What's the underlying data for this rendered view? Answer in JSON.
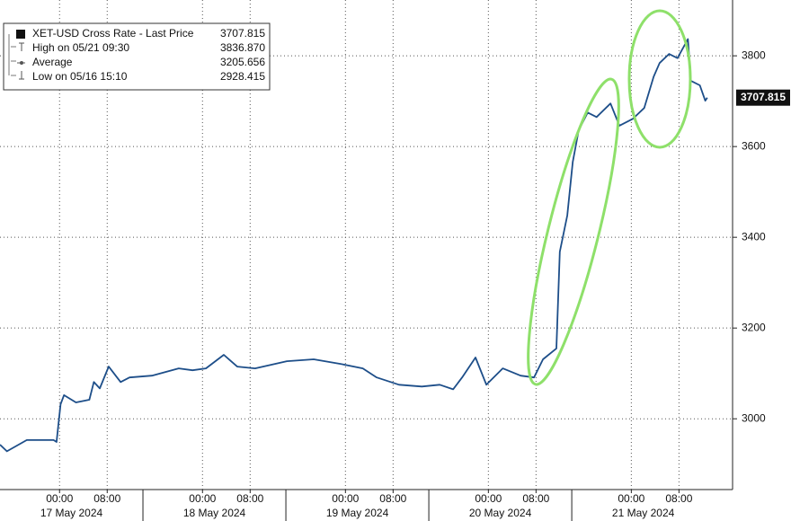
{
  "chart_data": {
    "type": "line",
    "series": [
      {
        "name": "XET-USD Cross Rate - Last Price",
        "color": "#1d4e89",
        "x": [
          "2024-05-16T14:00",
          "2024-05-16T15:10",
          "2024-05-16T18:30",
          "2024-05-16T23:00",
          "2024-05-16T23:30",
          "2024-05-17T00:10",
          "2024-05-17T00:45",
          "2024-05-17T02:45",
          "2024-05-17T05:00",
          "2024-05-17T05:45",
          "2024-05-17T06:45",
          "2024-05-17T08:15",
          "2024-05-17T10:15",
          "2024-05-17T11:45",
          "2024-05-17T15:30",
          "2024-05-17T20:00",
          "2024-05-17T22:20",
          "2024-05-18T00:35",
          "2024-05-18T03:35",
          "2024-05-18T05:50",
          "2024-05-18T08:50",
          "2024-05-18T14:10",
          "2024-05-18T18:40",
          "2024-05-18T23:10",
          "2024-05-19T02:55",
          "2024-05-19T05:15",
          "2024-05-19T09:00",
          "2024-05-19T12:50",
          "2024-05-19T15:50",
          "2024-05-19T18:05",
          "2024-05-19T19:35",
          "2024-05-19T21:50",
          "2024-05-19T23:40",
          "2024-05-20T02:25",
          "2024-05-20T05:25",
          "2024-05-20T07:40",
          "2024-05-20T09:10",
          "2024-05-20T11:25",
          "2024-05-20T12:00",
          "2024-05-20T13:15",
          "2024-05-20T14:10",
          "2024-05-20T15:10",
          "2024-05-20T16:40",
          "2024-05-20T18:10",
          "2024-05-20T20:30",
          "2024-05-20T22:00",
          "2024-05-21T00:15",
          "2024-05-21T02:10",
          "2024-05-21T03:45",
          "2024-05-21T04:45",
          "2024-05-21T06:20",
          "2024-05-21T07:45",
          "2024-05-21T09:30",
          "2024-05-21T10:00",
          "2024-05-21T11:30",
          "2024-05-21T12:25",
          "2024-05-21T12:45"
        ],
        "values": [
          2943,
          2928.415,
          2953,
          2953,
          2949,
          3032,
          3052,
          3036,
          3042,
          3081,
          3067,
          3115,
          3081,
          3091,
          3095,
          3111,
          3107,
          3111,
          3141,
          3115,
          3111,
          3127,
          3131,
          3121,
          3111,
          3091,
          3075,
          3071,
          3075,
          3065,
          3091,
          3135,
          3075,
          3111,
          3095,
          3091,
          3131,
          3155,
          3368,
          3448,
          3566,
          3636,
          3675,
          3665,
          3695,
          3646,
          3661,
          3685,
          3754,
          3784,
          3804,
          3795,
          3836.87,
          3745,
          3735,
          3701,
          3707.815
        ]
      }
    ],
    "stats": [
      {
        "name": "XET-USD Cross Rate - Last Price",
        "value": 3707.815
      },
      {
        "name": "High on 05/21 09:30",
        "value": 3836.87,
        "value_label": "3836.870"
      },
      {
        "name": "Average",
        "value": 3205.656
      },
      {
        "name": "Low on 05/16 15:10",
        "value": 2928.415
      }
    ],
    "xlim": [
      "2024-05-16T14:00",
      "2024-05-21T17:00"
    ],
    "xticks": [
      {
        "value": "2024-05-17T00:00",
        "label": "00:00"
      },
      {
        "value": "2024-05-17T08:00",
        "label": "08:00"
      },
      {
        "value": "2024-05-18T00:00",
        "label": "00:00"
      },
      {
        "value": "2024-05-18T08:00",
        "label": "08:00"
      },
      {
        "value": "2024-05-19T00:00",
        "label": "00:00"
      },
      {
        "value": "2024-05-19T08:00",
        "label": "08:00"
      },
      {
        "value": "2024-05-20T00:00",
        "label": "00:00"
      },
      {
        "value": "2024-05-20T08:00",
        "label": "08:00"
      },
      {
        "value": "2024-05-21T00:00",
        "label": "00:00"
      },
      {
        "value": "2024-05-21T08:00",
        "label": "08:00"
      }
    ],
    "xdays": [
      {
        "value": "2024-05-17T02:00",
        "label": "17 May 2024"
      },
      {
        "value": "2024-05-18T02:00",
        "label": "18 May 2024"
      },
      {
        "value": "2024-05-19T02:00",
        "label": "19 May 2024"
      },
      {
        "value": "2024-05-20T02:00",
        "label": "20 May 2024"
      },
      {
        "value": "2024-05-21T02:00",
        "label": "21 May 2024"
      }
    ],
    "ylim": [
      2844,
      3923
    ],
    "yticks": [
      3000,
      3200,
      3400,
      3600,
      3800
    ],
    "grid": true
  }
}
